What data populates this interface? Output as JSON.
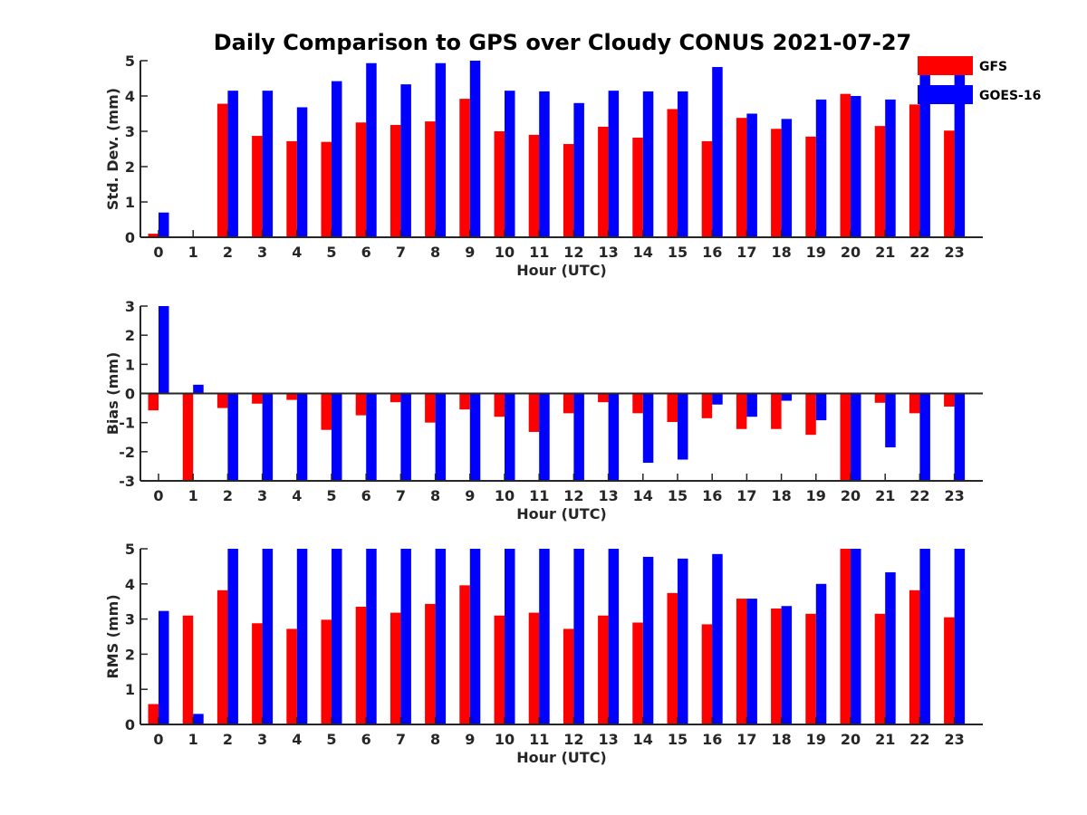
{
  "title": "Daily Comparison to GPS over Cloudy CONUS 2021-07-27",
  "colors": {
    "GFS": "#ff0000",
    "GOES-16": "#0000ff",
    "axis": "#262626"
  },
  "legend": {
    "placement": "top-right",
    "entries": [
      "GFS",
      "GOES-16"
    ]
  },
  "chart_data": [
    {
      "type": "bar",
      "xlabel": "Hour (UTC)",
      "ylabel": "Std. Dev. (mm)",
      "ylim": [
        0,
        5
      ],
      "yticks": [
        0,
        1,
        2,
        3,
        4,
        5
      ],
      "categories": [
        0,
        1,
        2,
        3,
        4,
        5,
        6,
        7,
        8,
        9,
        10,
        11,
        12,
        13,
        14,
        15,
        16,
        17,
        18,
        19,
        20,
        21,
        22,
        23
      ],
      "series": [
        {
          "name": "GFS",
          "values": [
            0.1,
            null,
            3.78,
            2.87,
            2.72,
            2.7,
            3.25,
            3.18,
            3.28,
            3.92,
            3.0,
            2.9,
            2.64,
            3.13,
            2.82,
            3.63,
            2.72,
            3.38,
            3.07,
            2.85,
            4.06,
            3.15,
            3.76,
            3.02
          ]
        },
        {
          "name": "GOES-16",
          "values": [
            0.7,
            null,
            4.15,
            4.15,
            3.68,
            4.42,
            4.93,
            4.33,
            4.93,
            5.0,
            4.15,
            4.13,
            3.8,
            4.15,
            4.13,
            4.13,
            4.82,
            3.5,
            3.35,
            3.9,
            4.0,
            3.9,
            5.0,
            4.93
          ]
        }
      ]
    },
    {
      "type": "bar",
      "xlabel": "Hour (UTC)",
      "ylabel": "Bias (mm)",
      "ylim": [
        -3,
        3
      ],
      "yticks": [
        -3,
        -2,
        -1,
        0,
        1,
        2,
        3
      ],
      "categories": [
        0,
        1,
        2,
        3,
        4,
        5,
        6,
        7,
        8,
        9,
        10,
        11,
        12,
        13,
        14,
        15,
        16,
        17,
        18,
        19,
        20,
        21,
        22,
        23
      ],
      "series": [
        {
          "name": "GFS",
          "values": [
            -0.58,
            -3.0,
            -0.5,
            -0.35,
            -0.22,
            -1.25,
            -0.75,
            -0.3,
            -1.0,
            -0.55,
            -0.8,
            -1.32,
            -0.68,
            -0.3,
            -0.68,
            -0.98,
            -0.85,
            -1.22,
            -1.22,
            -1.42,
            -3.0,
            -0.32,
            -0.68,
            -0.45
          ]
        },
        {
          "name": "GOES-16",
          "values": [
            3.0,
            0.3,
            -3.0,
            -3.0,
            -3.0,
            -3.0,
            -3.0,
            -3.0,
            -3.0,
            -3.0,
            -3.0,
            -3.0,
            -3.0,
            -3.0,
            -2.38,
            -2.27,
            -0.38,
            -0.8,
            -0.25,
            -0.92,
            -3.0,
            -1.85,
            -3.0,
            -3.0
          ]
        }
      ]
    },
    {
      "type": "bar",
      "xlabel": "Hour (UTC)",
      "ylabel": "RMS (mm)",
      "ylim": [
        0,
        5
      ],
      "yticks": [
        0,
        1,
        2,
        3,
        4,
        5
      ],
      "categories": [
        0,
        1,
        2,
        3,
        4,
        5,
        6,
        7,
        8,
        9,
        10,
        11,
        12,
        13,
        14,
        15,
        16,
        17,
        18,
        19,
        20,
        21,
        22,
        23
      ],
      "series": [
        {
          "name": "GFS",
          "values": [
            0.58,
            3.1,
            3.82,
            2.88,
            2.72,
            2.98,
            3.35,
            3.18,
            3.43,
            3.96,
            3.1,
            3.18,
            2.72,
            3.1,
            2.9,
            3.74,
            2.85,
            3.58,
            3.3,
            3.15,
            5.0,
            3.15,
            3.82,
            3.05
          ]
        },
        {
          "name": "GOES-16",
          "values": [
            3.23,
            0.3,
            5.0,
            5.0,
            5.0,
            5.0,
            5.0,
            5.0,
            5.0,
            5.0,
            5.0,
            5.0,
            5.0,
            5.0,
            4.77,
            4.72,
            4.85,
            3.58,
            3.37,
            4.0,
            5.0,
            4.33,
            5.0,
            5.0
          ]
        }
      ]
    }
  ]
}
